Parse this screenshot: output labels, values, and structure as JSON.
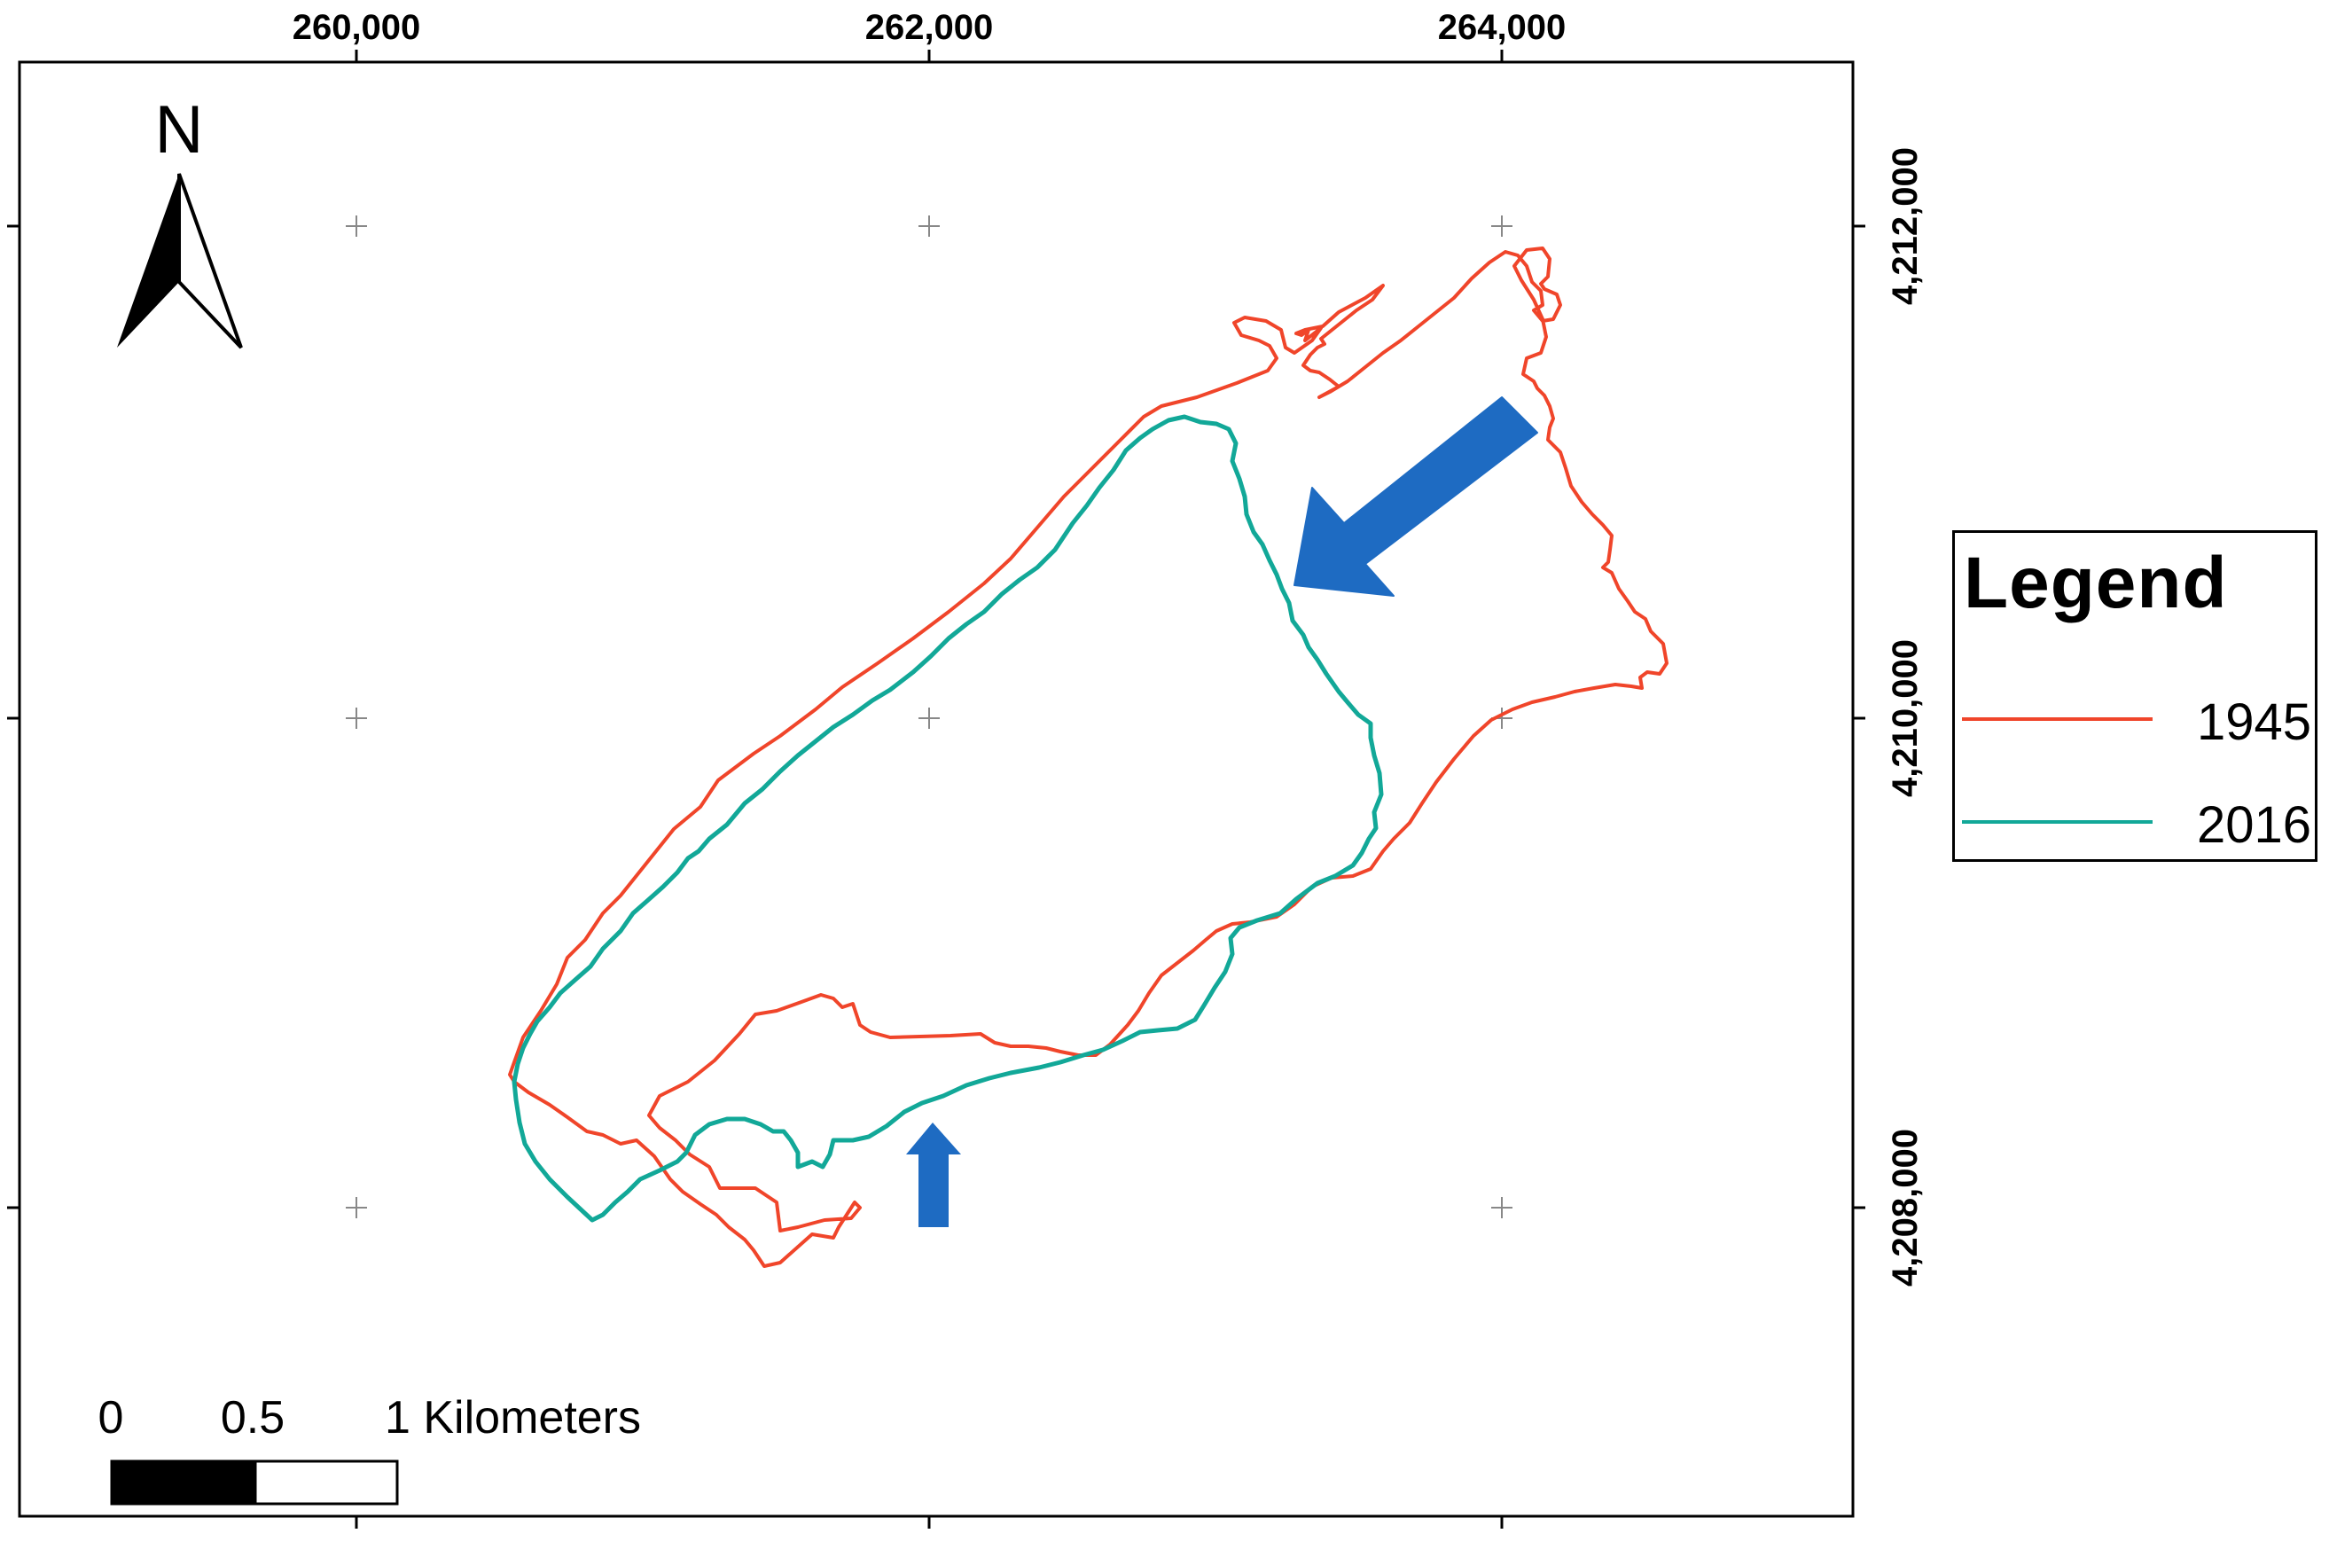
{
  "map": {
    "top_ticks": [
      "260,000",
      "262,000",
      "264,000"
    ],
    "right_ticks": [
      "4,212,000",
      "4,210,000",
      "4,208,000"
    ],
    "north_label": "N",
    "scale_bar": {
      "labels": [
        "0",
        "0.5",
        "1 Kilometers"
      ]
    },
    "features": [
      {
        "name": "1945",
        "color": "#f0452a"
      },
      {
        "name": "2016",
        "color": "#12a898"
      }
    ],
    "arrow_color": "#1e6bc2"
  },
  "legend": {
    "title": "Legend",
    "items": [
      {
        "label": "1945",
        "color": "#f0452a"
      },
      {
        "label": "2016",
        "color": "#12a898"
      }
    ]
  }
}
